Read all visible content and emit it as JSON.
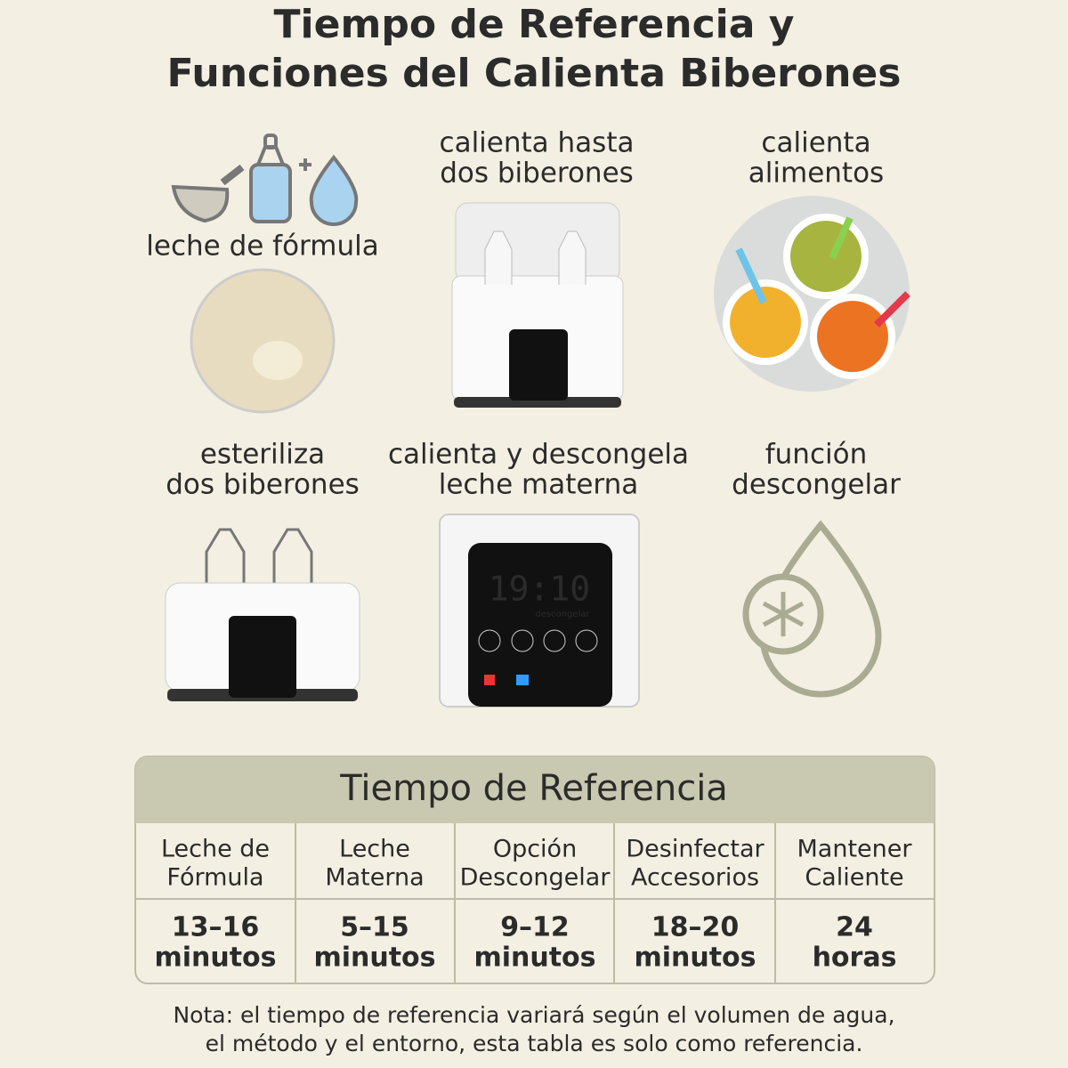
{
  "header": {
    "title": [
      "Tiempo de Referencia y",
      "Funciones del Calienta Biberones"
    ]
  },
  "features": [
    {
      "label": [
        "leche de fórmula"
      ]
    },
    {
      "label": [
        "calienta hasta",
        "dos biberones"
      ]
    },
    {
      "label": [
        "calienta",
        "alimentos"
      ]
    },
    {
      "label": [
        "esteriliza",
        "dos biberones"
      ]
    },
    {
      "label": [
        "calienta y descongela",
        "leche materna"
      ]
    },
    {
      "label": [
        "función",
        "descongelar"
      ]
    }
  ],
  "device_display": {
    "time": "19:10",
    "mode": "descongelar"
  },
  "table": {
    "title": "Tiempo de Referencia",
    "columns": [
      {
        "header": [
          "Leche de",
          "Fórmula"
        ],
        "value": [
          "13–16",
          "minutos"
        ]
      },
      {
        "header": [
          "Leche",
          "Materna"
        ],
        "value": [
          "5–15",
          "minutos"
        ]
      },
      {
        "header": [
          "Opción",
          "Descongelar"
        ],
        "value": [
          "9–12",
          "minutos"
        ]
      },
      {
        "header": [
          "Desinfectar",
          "Accesorios"
        ],
        "value": [
          "18–20",
          "minutos"
        ]
      },
      {
        "header": [
          "Mantener",
          "Caliente"
        ],
        "value": [
          "24",
          "horas"
        ]
      }
    ]
  },
  "note": [
    "Nota: el tiempo de referencia variará según el volumen de agua,",
    "el método y el entorno, esta tabla es solo como referencia."
  ]
}
